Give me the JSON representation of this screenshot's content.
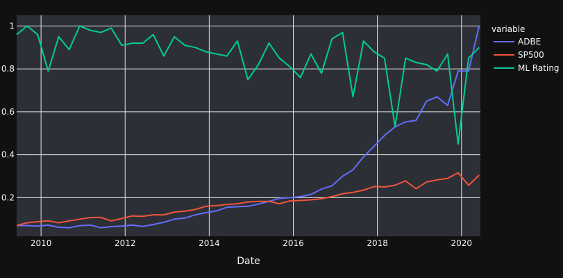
{
  "chart_data": {
    "type": "line",
    "xlabel": "Date",
    "ylabel": "",
    "xlim": [
      2009.42,
      2020.45
    ],
    "ylim": [
      0.02,
      1.05
    ],
    "grid": true,
    "legend_position": "right",
    "legend_title": "variable",
    "x_ticks": [
      2010,
      2012,
      2014,
      2016,
      2018,
      2020
    ],
    "y_ticks": [
      0.2,
      0.4,
      0.6,
      0.8,
      1
    ],
    "y_tick_labels": [
      "0.2",
      "0.4",
      "0.6",
      "0.8",
      "1"
    ],
    "series": [
      {
        "name": "ADBE",
        "color": "#636efa",
        "points": [
          [
            2009.42,
            0.07
          ],
          [
            2009.67,
            0.07
          ],
          [
            2009.92,
            0.068
          ],
          [
            2010.17,
            0.072
          ],
          [
            2010.42,
            0.062
          ],
          [
            2010.67,
            0.06
          ],
          [
            2010.92,
            0.07
          ],
          [
            2011.17,
            0.072
          ],
          [
            2011.42,
            0.06
          ],
          [
            2011.67,
            0.065
          ],
          [
            2011.92,
            0.068
          ],
          [
            2012.17,
            0.072
          ],
          [
            2012.42,
            0.066
          ],
          [
            2012.67,
            0.075
          ],
          [
            2012.92,
            0.085
          ],
          [
            2013.17,
            0.1
          ],
          [
            2013.42,
            0.105
          ],
          [
            2013.67,
            0.12
          ],
          [
            2013.92,
            0.13
          ],
          [
            2014.17,
            0.138
          ],
          [
            2014.42,
            0.155
          ],
          [
            2014.67,
            0.158
          ],
          [
            2014.92,
            0.16
          ],
          [
            2015.17,
            0.17
          ],
          [
            2015.42,
            0.183
          ],
          [
            2015.67,
            0.197
          ],
          [
            2015.92,
            0.2
          ],
          [
            2016.17,
            0.205
          ],
          [
            2016.42,
            0.215
          ],
          [
            2016.67,
            0.24
          ],
          [
            2016.92,
            0.255
          ],
          [
            2017.17,
            0.3
          ],
          [
            2017.42,
            0.33
          ],
          [
            2017.67,
            0.39
          ],
          [
            2017.92,
            0.44
          ],
          [
            2018.17,
            0.49
          ],
          [
            2018.42,
            0.53
          ],
          [
            2018.67,
            0.553
          ],
          [
            2018.92,
            0.56
          ],
          [
            2019.17,
            0.65
          ],
          [
            2019.42,
            0.67
          ],
          [
            2019.67,
            0.63
          ],
          [
            2019.92,
            0.79
          ],
          [
            2020.17,
            0.79
          ],
          [
            2020.42,
            1.0
          ]
        ]
      },
      {
        "name": "SP500",
        "color": "#ef553b",
        "points": [
          [
            2009.42,
            0.07
          ],
          [
            2009.67,
            0.083
          ],
          [
            2009.92,
            0.088
          ],
          [
            2010.17,
            0.092
          ],
          [
            2010.42,
            0.083
          ],
          [
            2010.67,
            0.092
          ],
          [
            2010.92,
            0.1
          ],
          [
            2011.17,
            0.107
          ],
          [
            2011.42,
            0.108
          ],
          [
            2011.67,
            0.092
          ],
          [
            2011.92,
            0.103
          ],
          [
            2012.17,
            0.115
          ],
          [
            2012.42,
            0.113
          ],
          [
            2012.67,
            0.12
          ],
          [
            2012.92,
            0.12
          ],
          [
            2013.17,
            0.133
          ],
          [
            2013.42,
            0.137
          ],
          [
            2013.67,
            0.145
          ],
          [
            2013.92,
            0.16
          ],
          [
            2014.17,
            0.163
          ],
          [
            2014.42,
            0.168
          ],
          [
            2014.67,
            0.172
          ],
          [
            2014.92,
            0.18
          ],
          [
            2015.17,
            0.183
          ],
          [
            2015.42,
            0.183
          ],
          [
            2015.67,
            0.172
          ],
          [
            2015.92,
            0.185
          ],
          [
            2016.17,
            0.187
          ],
          [
            2016.42,
            0.19
          ],
          [
            2016.67,
            0.195
          ],
          [
            2016.92,
            0.205
          ],
          [
            2017.17,
            0.218
          ],
          [
            2017.42,
            0.225
          ],
          [
            2017.67,
            0.235
          ],
          [
            2017.92,
            0.252
          ],
          [
            2018.17,
            0.25
          ],
          [
            2018.42,
            0.258
          ],
          [
            2018.67,
            0.278
          ],
          [
            2018.92,
            0.242
          ],
          [
            2019.17,
            0.273
          ],
          [
            2019.42,
            0.283
          ],
          [
            2019.67,
            0.29
          ],
          [
            2019.92,
            0.316
          ],
          [
            2020.17,
            0.258
          ],
          [
            2020.42,
            0.305
          ]
        ]
      },
      {
        "name": "ML Rating",
        "color": "#00cc96",
        "points": [
          [
            2009.42,
            0.96
          ],
          [
            2009.67,
            1.0
          ],
          [
            2009.92,
            0.96
          ],
          [
            2010.17,
            0.79
          ],
          [
            2010.42,
            0.95
          ],
          [
            2010.67,
            0.89
          ],
          [
            2010.92,
            1.0
          ],
          [
            2011.17,
            0.98
          ],
          [
            2011.42,
            0.97
          ],
          [
            2011.67,
            0.99
          ],
          [
            2011.92,
            0.91
          ],
          [
            2012.17,
            0.92
          ],
          [
            2012.42,
            0.92
          ],
          [
            2012.67,
            0.96
          ],
          [
            2012.92,
            0.86
          ],
          [
            2013.17,
            0.95
          ],
          [
            2013.42,
            0.91
          ],
          [
            2013.67,
            0.9
          ],
          [
            2013.92,
            0.88
          ],
          [
            2014.17,
            0.87
          ],
          [
            2014.42,
            0.86
          ],
          [
            2014.67,
            0.93
          ],
          [
            2014.92,
            0.75
          ],
          [
            2015.17,
            0.82
          ],
          [
            2015.42,
            0.92
          ],
          [
            2015.67,
            0.85
          ],
          [
            2015.92,
            0.81
          ],
          [
            2016.17,
            0.76
          ],
          [
            2016.42,
            0.87
          ],
          [
            2016.67,
            0.78
          ],
          [
            2016.92,
            0.94
          ],
          [
            2017.17,
            0.97
          ],
          [
            2017.42,
            0.67
          ],
          [
            2017.67,
            0.93
          ],
          [
            2017.92,
            0.88
          ],
          [
            2018.17,
            0.85
          ],
          [
            2018.42,
            0.53
          ],
          [
            2018.67,
            0.85
          ],
          [
            2018.92,
            0.83
          ],
          [
            2019.17,
            0.82
          ],
          [
            2019.42,
            0.79
          ],
          [
            2019.67,
            0.87
          ],
          [
            2019.92,
            0.45
          ],
          [
            2020.17,
            0.85
          ],
          [
            2020.42,
            0.9
          ]
        ]
      }
    ]
  },
  "colors": {
    "paper_bg": "#111111",
    "plot_bg": "#2d2f37",
    "grid": "#e6e6e6",
    "text": "#f2f5fa"
  }
}
